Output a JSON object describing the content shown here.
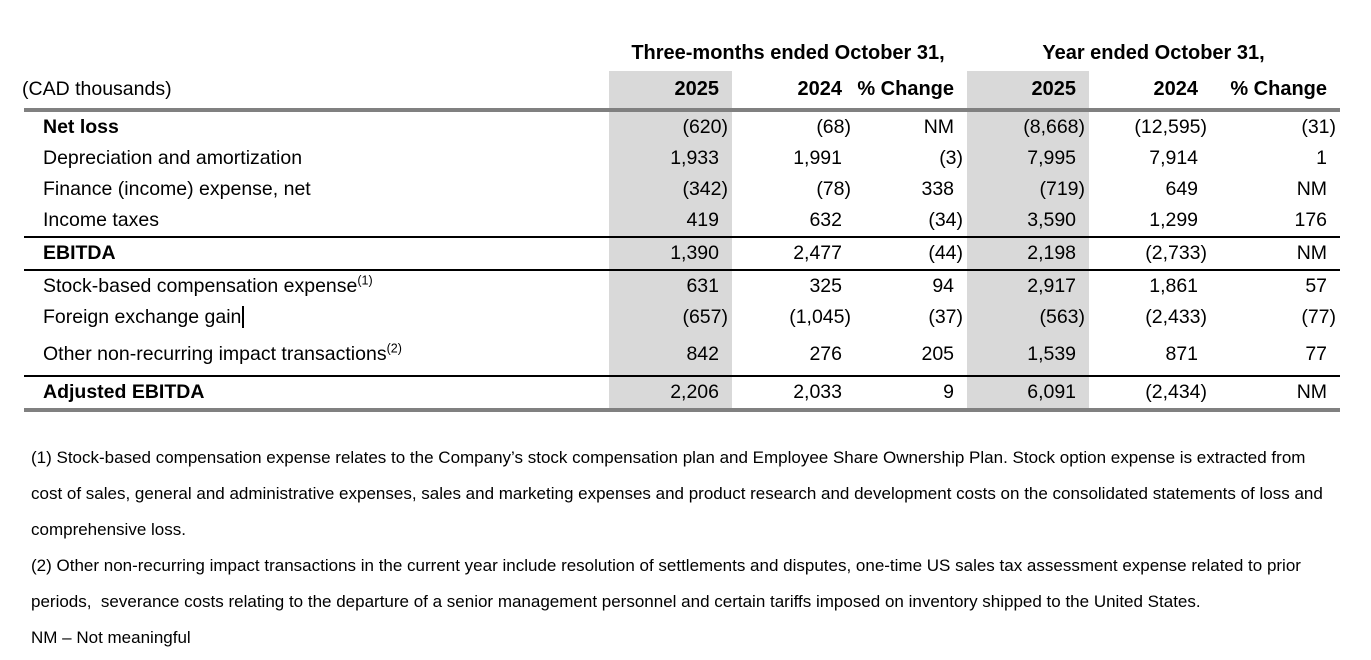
{
  "colors": {
    "shade": "#d9d9d9",
    "rule_heavy": "#808080",
    "rule_thin": "#000000"
  },
  "header": {
    "period_group_1": "Three-months ended October 31,",
    "period_group_2": "Year ended October 31,",
    "unit_label": "(CAD thousands)",
    "columns": [
      "2025",
      "2024",
      "% Change",
      "2025",
      "2024",
      "% Change"
    ]
  },
  "table": {
    "rows": [
      {
        "label": "Net loss",
        "bold": true,
        "values": [
          "(620)",
          "(68)",
          "NM",
          "(8,668)",
          "(12,595)",
          "(31)"
        ]
      },
      {
        "label": "Depreciation and amortization",
        "bold": false,
        "values": [
          "1,933",
          "1,991",
          "(3)",
          "7,995",
          "7,914",
          "1"
        ]
      },
      {
        "label": "Finance (income) expense, net",
        "bold": false,
        "values": [
          "(342)",
          "(78)",
          "338",
          "(719)",
          "649",
          "NM"
        ]
      },
      {
        "label": "Income taxes",
        "bold": false,
        "values": [
          "419",
          "632",
          "(34)",
          "3,590",
          "1,299",
          "176"
        ]
      },
      {
        "label": "EBITDA",
        "bold": true,
        "values": [
          "1,390",
          "2,477",
          "(44)",
          "2,198",
          "(2,733)",
          "NM"
        ]
      },
      {
        "label": "Stock-based compensation expense",
        "superscript": "(1)",
        "bold": false,
        "values": [
          "631",
          "325",
          "94",
          "2,917",
          "1,861",
          "57"
        ]
      },
      {
        "label": "Foreign exchange gain",
        "bold": false,
        "text_cursor": true,
        "values": [
          "(657)",
          "(1,045)",
          "(37)",
          "(563)",
          "(2,433)",
          "(77)"
        ]
      },
      {
        "label": "Other non-recurring impact transactions",
        "superscript": "(2)",
        "bold": false,
        "values": [
          "842",
          "276",
          "205",
          "1,539",
          "871",
          "77"
        ]
      },
      {
        "label": "Adjusted EBITDA",
        "bold": true,
        "values": [
          "2,206",
          "2,033",
          "9",
          "6,091",
          "(2,434)",
          "NM"
        ]
      }
    ]
  },
  "footnotes": [
    "(1) Stock-based compensation expense relates to the Company’s stock compensation plan and Employee Share Ownership Plan. Stock option expense is extracted from cost of sales, general and administrative expenses, sales and marketing expenses and product research and development costs on the consolidated statements of loss and comprehensive loss.",
    "(2) Other non-recurring impact transactions in the current year include resolution of settlements and disputes, one-time US sales tax assessment expense related to prior periods,  severance costs relating to the departure of a senior management personnel and certain tariffs imposed on inventory shipped to the United States.",
    "NM – Not meaningful"
  ]
}
